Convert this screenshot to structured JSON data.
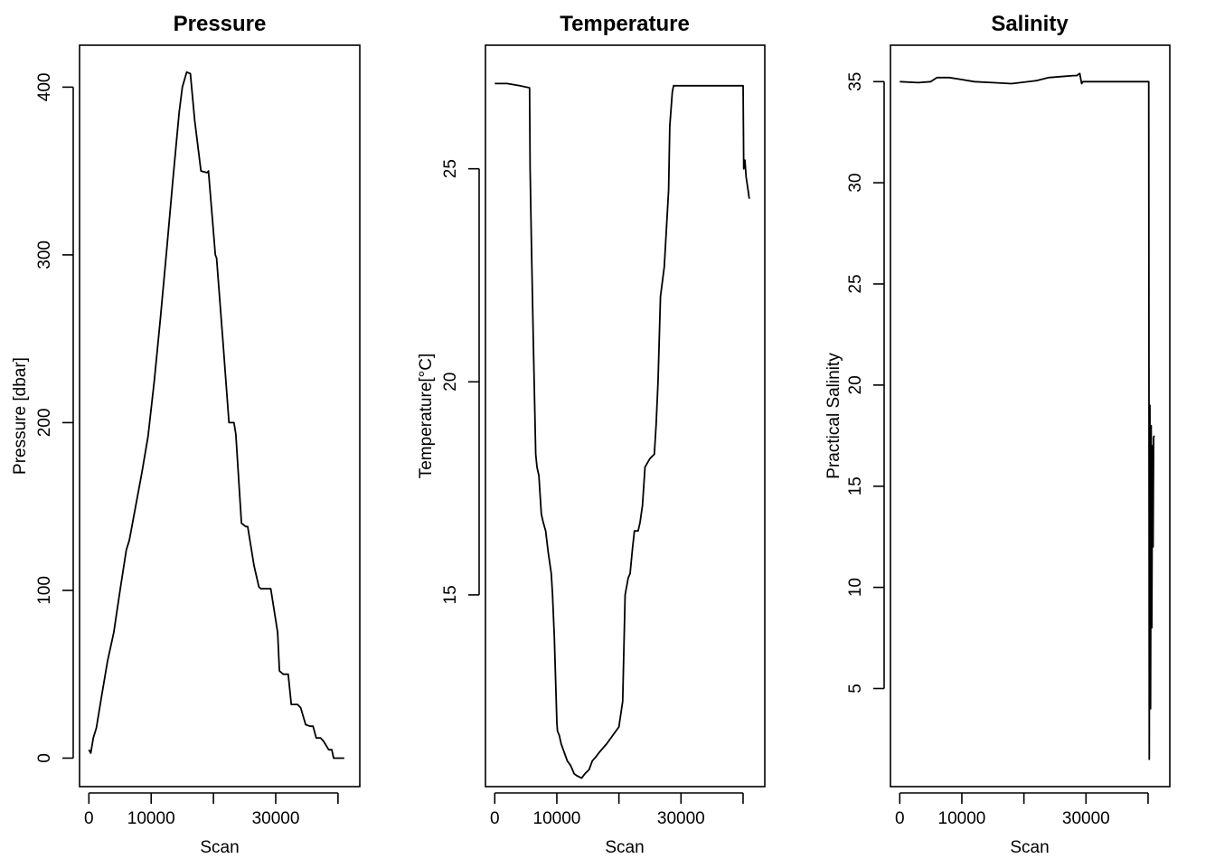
{
  "chart_data": [
    {
      "type": "line",
      "title": "Pressure",
      "xlabel": "Scan",
      "ylabel": "Pressure [dbar]",
      "xlim": [
        -1500,
        43500
      ],
      "ylim": [
        -17,
        425
      ],
      "xticks": [
        0,
        10000,
        20000,
        30000,
        40000
      ],
      "xtick_labels": [
        "0",
        "10000",
        "",
        "30000",
        ""
      ],
      "yticks": [
        0,
        100,
        200,
        300,
        400
      ],
      "ytick_labels": [
        "0",
        "100",
        "200",
        "300",
        "400"
      ],
      "grid": false,
      "color": "#000000",
      "series": [
        {
          "x": [
            0,
            300,
            700,
            1200,
            2000,
            3000,
            4000,
            5000,
            6000,
            6500,
            7500,
            8500,
            9500,
            10500,
            11500,
            12500,
            13500,
            14500,
            15000,
            15700,
            16300,
            17000,
            18000,
            19000,
            19200,
            20300,
            20500,
            21500,
            22500,
            23300,
            23600,
            24500,
            25200,
            25500,
            26500,
            27300,
            27600,
            28500,
            29200,
            30300,
            30600,
            31200,
            32000,
            32500,
            33500,
            34000,
            34800,
            35500,
            36000,
            36500,
            37200,
            37700,
            38500,
            39000,
            39300,
            40000,
            40500,
            41000
          ],
          "y": [
            5,
            3,
            12,
            18,
            36,
            58,
            75,
            100,
            124,
            130,
            150,
            170,
            192,
            225,
            263,
            303,
            345,
            385,
            400,
            409,
            408,
            380,
            350,
            349,
            350,
            300,
            298,
            250,
            200,
            200,
            193,
            140,
            138,
            138,
            115,
            102,
            101,
            101,
            101,
            75,
            52,
            50,
            50,
            32,
            32,
            30,
            20,
            19,
            19,
            12,
            12,
            10,
            5,
            5,
            0,
            0,
            0,
            0
          ]
        }
      ]
    },
    {
      "type": "line",
      "title": "Temperature",
      "xlabel": "Scan",
      "ylabel": "Temperature[°C]",
      "xlim": [
        -1500,
        43500
      ],
      "ylim": [
        10.5,
        27.9
      ],
      "xticks": [
        0,
        10000,
        20000,
        30000,
        40000
      ],
      "xtick_labels": [
        "0",
        "10000",
        "",
        "30000",
        ""
      ],
      "yticks": [
        15,
        20,
        25
      ],
      "ytick_labels": [
        "15",
        "20",
        "25"
      ],
      "grid": false,
      "color": "#000000",
      "series": [
        {
          "x": [
            0,
            2000,
            4000,
            5600,
            5700,
            5900,
            6200,
            6600,
            6800,
            7100,
            7500,
            7800,
            8200,
            8600,
            9100,
            9300,
            9600,
            9800,
            10000,
            10100,
            10400,
            10700,
            11200,
            11700,
            12200,
            12800,
            13300,
            14000,
            14500,
            15200,
            15700,
            16300,
            16800,
            17400,
            18000,
            19000,
            20000,
            20600,
            21000,
            21500,
            21800,
            22200,
            22500,
            23100,
            23400,
            23800,
            24200,
            25000,
            25700,
            26000,
            26300,
            26700,
            27300,
            28000,
            28200,
            28600,
            28800,
            29000,
            29500,
            30500,
            35000,
            40000,
            40100,
            40300,
            40500,
            40800,
            41000
          ],
          "y": [
            27.0,
            27.0,
            26.95,
            26.9,
            25.0,
            23.3,
            21.0,
            18.3,
            18.0,
            17.8,
            16.9,
            16.7,
            16.5,
            16.0,
            15.5,
            15.0,
            14.0,
            13.0,
            12.0,
            11.8,
            11.7,
            11.5,
            11.3,
            11.1,
            11.0,
            10.8,
            10.75,
            10.7,
            10.8,
            10.9,
            11.1,
            11.2,
            11.3,
            11.4,
            11.5,
            11.7,
            11.9,
            12.5,
            15.0,
            15.4,
            15.5,
            16.1,
            16.5,
            16.5,
            16.7,
            17.1,
            18.0,
            18.2,
            18.3,
            19.0,
            20.0,
            22.0,
            22.7,
            24.5,
            26.0,
            26.8,
            26.95,
            26.95,
            26.95,
            26.95,
            26.95,
            26.95,
            25.0,
            25.2,
            24.8,
            24.5,
            24.3
          ]
        }
      ]
    },
    {
      "type": "line",
      "title": "Salinity",
      "xlabel": "Scan",
      "ylabel": "Practical Salinity",
      "xlim": [
        -1500,
        43500
      ],
      "ylim": [
        0.15,
        36.8
      ],
      "xticks": [
        0,
        10000,
        20000,
        30000,
        40000
      ],
      "xtick_labels": [
        "0",
        "10000",
        "",
        "30000",
        ""
      ],
      "yticks": [
        5,
        10,
        15,
        20,
        25,
        30,
        35
      ],
      "ytick_labels": [
        "5",
        "10",
        "15",
        "20",
        "25",
        "30",
        "35"
      ],
      "grid": false,
      "color": "#000000",
      "series": [
        {
          "x": [
            0,
            3000,
            5000,
            6000,
            8000,
            10000,
            12000,
            15000,
            18000,
            22000,
            24000,
            26000,
            28000,
            28500,
            29000,
            29300,
            29500,
            30000,
            32000,
            35000,
            38000,
            40000,
            40100,
            40200,
            40300,
            40400,
            40500,
            40600,
            40700,
            40800,
            40900,
            41000
          ],
          "y": [
            35.0,
            34.95,
            35.0,
            35.2,
            35.2,
            35.1,
            35.0,
            34.95,
            34.9,
            35.05,
            35.2,
            35.25,
            35.3,
            35.3,
            35.4,
            34.9,
            35.0,
            35.0,
            35.0,
            35.0,
            35.0,
            35.0,
            35.0,
            1.5,
            19.0,
            4.0,
            18.0,
            8.0,
            17.0,
            12.0,
            17.4,
            17.5
          ]
        }
      ]
    }
  ]
}
